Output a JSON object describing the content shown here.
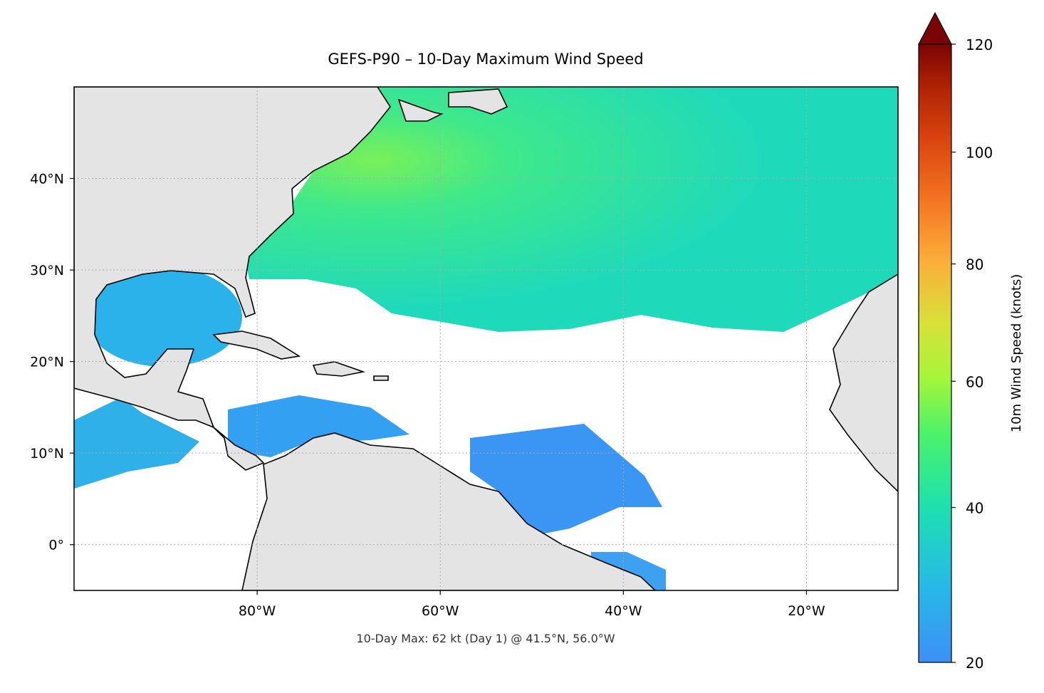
{
  "chart_data": {
    "type": "map",
    "title": "GEFS-P90 – 10-Day Maximum Wind Speed",
    "annotation": "10-Day Max: 62 kt (Day 1) @ 41.5°N, 56.0°W",
    "xlim": [
      -100,
      -10
    ],
    "ylim": [
      -5,
      50
    ],
    "xticks": [
      {
        "value": -80,
        "label": "80°W"
      },
      {
        "value": -60,
        "label": "60°W"
      },
      {
        "value": -40,
        "label": "40°W"
      },
      {
        "value": -20,
        "label": "20°W"
      }
    ],
    "yticks": [
      {
        "value": 0,
        "label": "0°"
      },
      {
        "value": 10,
        "label": "10°N"
      },
      {
        "value": 20,
        "label": "20°N"
      },
      {
        "value": 30,
        "label": "30°N"
      },
      {
        "value": 40,
        "label": "40°N"
      }
    ],
    "grid": true,
    "colorbar": {
      "label": "10m Wind Speed (knots)",
      "lim": [
        20,
        120
      ],
      "ticks": [
        20,
        40,
        60,
        80,
        100,
        120
      ],
      "norm_gamma": 0.86,
      "extend": "max"
    }
  }
}
